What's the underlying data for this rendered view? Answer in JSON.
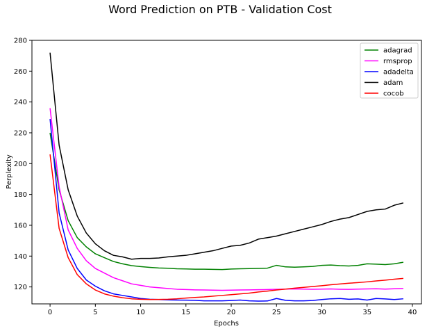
{
  "chart_data": {
    "type": "line",
    "title": "Word Prediction on PTB - Validation Cost",
    "xlabel": "Epochs",
    "ylabel": "Perplexity",
    "xlim": [
      -2,
      41
    ],
    "ylim": [
      109,
      280
    ],
    "xticks": [
      0,
      5,
      10,
      15,
      20,
      25,
      30,
      35,
      40
    ],
    "yticks": [
      120,
      140,
      160,
      180,
      200,
      220,
      240,
      260,
      280
    ],
    "grid": false,
    "legend_position": "top-right",
    "x": [
      0,
      1,
      2,
      3,
      4,
      5,
      6,
      7,
      8,
      9,
      10,
      11,
      12,
      13,
      14,
      15,
      16,
      17,
      18,
      19,
      20,
      21,
      22,
      23,
      24,
      25,
      26,
      27,
      28,
      29,
      30,
      31,
      32,
      33,
      34,
      35,
      36,
      37,
      38,
      39
    ],
    "series": [
      {
        "name": "adagrad",
        "color": "#008000",
        "values": [
          220,
          183,
          163,
          152,
          146,
          141.5,
          139,
          136.5,
          135,
          133.8,
          133.2,
          132.7,
          132.3,
          132.1,
          131.8,
          131.7,
          131.5,
          131.5,
          131.4,
          131.3,
          131.6,
          131.8,
          131.9,
          132,
          132.2,
          134,
          133,
          132.8,
          133,
          133.3,
          134,
          134.2,
          133.8,
          133.6,
          134,
          135,
          134.8,
          134.5,
          135,
          136
        ]
      },
      {
        "name": "rmsprop",
        "color": "#ff00ff",
        "values": [
          236,
          185,
          157,
          145,
          137,
          132,
          129,
          126,
          124,
          122,
          121,
          120,
          119.5,
          119,
          118.5,
          118.3,
          118.1,
          118,
          117.9,
          117.8,
          117.9,
          118,
          118.1,
          118.2,
          118.3,
          118.5,
          118.6,
          118.7,
          118.6,
          118.5,
          118.6,
          118.7,
          118.5,
          118.4,
          118.6,
          118.7,
          118.8,
          118.6,
          118.8,
          119
        ]
      },
      {
        "name": "adadelta",
        "color": "#0000ff",
        "values": [
          229,
          168,
          144,
          132,
          124.5,
          120.5,
          117.5,
          115.5,
          114.5,
          113.5,
          112.5,
          112,
          111.8,
          111.6,
          111.5,
          111.4,
          111.3,
          111,
          111,
          111,
          111.2,
          111.5,
          111,
          110.8,
          110.9,
          112.5,
          111.3,
          111,
          111,
          111.2,
          111.8,
          112.3,
          112.5,
          112,
          112.2,
          111.5,
          112.5,
          112.2,
          111.8,
          112.3
        ]
      },
      {
        "name": "adam",
        "color": "#000000",
        "values": [
          272,
          212,
          183,
          166,
          155,
          148,
          143.5,
          140.5,
          139.5,
          138,
          138.5,
          138.5,
          138.8,
          139.5,
          140,
          140.5,
          141.5,
          142.5,
          143.5,
          145,
          146.5,
          147,
          148.5,
          151,
          152,
          153,
          154.5,
          156,
          157.5,
          159,
          160.5,
          162.5,
          164,
          165,
          167,
          169,
          170,
          170.5,
          173,
          174.5
        ]
      },
      {
        "name": "cocob",
        "color": "#ff0000",
        "values": [
          206,
          158,
          139,
          128,
          122,
          118,
          115.5,
          114,
          113,
          112.3,
          112,
          111.8,
          111.9,
          112,
          112.3,
          112.8,
          113.2,
          113.5,
          114,
          114.5,
          115,
          115.5,
          116,
          116.7,
          117.3,
          118,
          118.6,
          119.2,
          119.7,
          120.3,
          120.8,
          121.4,
          121.9,
          122.4,
          122.8,
          123.3,
          123.9,
          124.4,
          125,
          125.5
        ]
      }
    ]
  }
}
